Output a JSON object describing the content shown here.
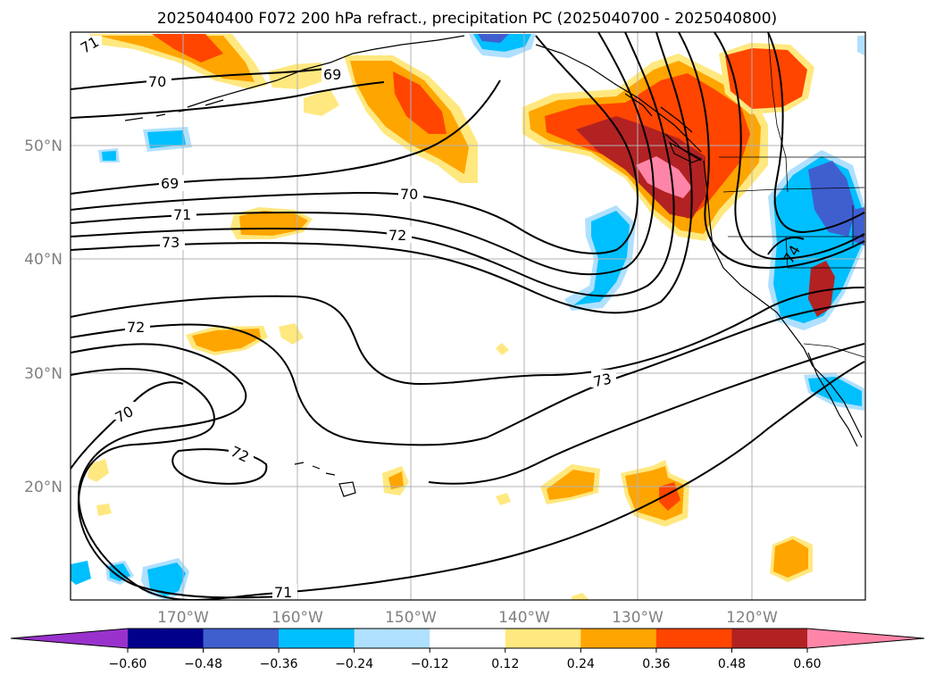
{
  "title": "2025040400 F072 200 hPa refract., precipitation PC (2025040700 - 2025040800)",
  "lat_labels": [
    "50°N",
    "40°N",
    "30°N",
    "20°N"
  ],
  "lon_labels": [
    "170°W",
    "160°W",
    "150°W",
    "140°W",
    "130°W",
    "120°W"
  ],
  "contour_labels": [
    "71",
    "70",
    "69",
    "69",
    "70",
    "71",
    "72",
    "73",
    "72",
    "70",
    "72",
    "73",
    "71",
    "74"
  ],
  "colorbar": {
    "ticks": [
      "−0.60",
      "−0.48",
      "−0.36",
      "−0.24",
      "−0.12",
      "0.12",
      "0.24",
      "0.36",
      "0.48",
      "0.60"
    ],
    "colors": [
      "#9932cc",
      "#00008b",
      "#3f5fcf",
      "#00bfff",
      "#b0e0ff",
      "#ffffff",
      "#ffe87f",
      "#ffa500",
      "#ff4500",
      "#b22222",
      "#ff85a8"
    ]
  },
  "map": {
    "lon_range": [
      -179,
      -109
    ],
    "lat_range": [
      10,
      60
    ],
    "gridlines": true,
    "contour_field": "200 hPa refractivity",
    "fill_field": "precipitation PC"
  }
}
